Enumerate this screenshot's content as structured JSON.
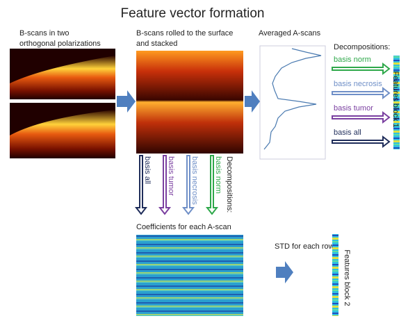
{
  "title": "Feature vector formation",
  "bscans": {
    "label_line1": "B-scans in two",
    "label_line2": "orthogonal polarizations"
  },
  "stacked": {
    "label_line1": "B-scans rolled to the surface",
    "label_line2": "and stacked"
  },
  "averaged": {
    "label": "Averaged A-scans"
  },
  "right_decompositions": {
    "heading": "Decompositions:",
    "items": [
      "basis norm",
      "basis necrosis",
      "basis tumor",
      "basis all"
    ]
  },
  "features_block_1": "Features block 1",
  "down_decompositions": {
    "heading": "Decompositions:",
    "items": [
      "basis all",
      "basis tumor",
      "basis necrosis",
      "basis norm"
    ]
  },
  "coefficients": {
    "label": "Coefficients for each A-scan"
  },
  "std": {
    "label": "STD for each row"
  },
  "features_block_2": "Features block 2"
}
